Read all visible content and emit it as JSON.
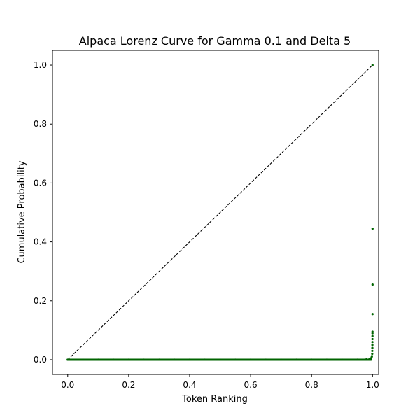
{
  "chart_data": {
    "type": "scatter",
    "title": "Alpaca Lorenz Curve for Gamma 0.1 and Delta 5",
    "xlabel": "Token Ranking",
    "ylabel": "Cumulative Probability",
    "xlim": [
      -0.05,
      1.02
    ],
    "ylim": [
      -0.05,
      1.05
    ],
    "xticks": [
      0.0,
      0.2,
      0.4,
      0.6,
      0.8,
      1.0
    ],
    "yticks": [
      0.0,
      0.2,
      0.4,
      0.6,
      0.8,
      1.0
    ],
    "grid": false,
    "legend": "none",
    "reference_line": {
      "style": "dashed",
      "color": "#000000",
      "x": [
        0.0,
        1.0
      ],
      "y": [
        0.0,
        1.0
      ]
    },
    "series": [
      {
        "color": "#006400",
        "points": [
          [
            0.0,
            0.0
          ],
          [
            0.05,
            0.0
          ],
          [
            0.1,
            0.0
          ],
          [
            0.15,
            0.0
          ],
          [
            0.2,
            0.0
          ],
          [
            0.25,
            0.0
          ],
          [
            0.3,
            0.0
          ],
          [
            0.35,
            0.0
          ],
          [
            0.4,
            0.0
          ],
          [
            0.45,
            0.0
          ],
          [
            0.5,
            0.0
          ],
          [
            0.55,
            0.0
          ],
          [
            0.6,
            0.0
          ],
          [
            0.65,
            0.0
          ],
          [
            0.7,
            0.0
          ],
          [
            0.75,
            0.0
          ],
          [
            0.8,
            0.0
          ],
          [
            0.85,
            0.0
          ],
          [
            0.9,
            0.0
          ],
          [
            0.95,
            0.0
          ],
          [
            0.98,
            0.001
          ],
          [
            0.99,
            0.002
          ],
          [
            0.995,
            0.004
          ],
          [
            0.997,
            0.008
          ],
          [
            0.998,
            0.012
          ],
          [
            0.999,
            0.02
          ],
          [
            0.9992,
            0.03
          ],
          [
            0.9994,
            0.04
          ],
          [
            0.9995,
            0.05
          ],
          [
            0.9996,
            0.06
          ],
          [
            0.9997,
            0.07
          ],
          [
            0.9998,
            0.08
          ],
          [
            0.9998,
            0.09
          ],
          [
            0.9999,
            0.095
          ],
          [
            0.9999,
            0.155
          ],
          [
            1.0,
            0.255
          ],
          [
            1.0,
            0.445
          ],
          [
            1.0,
            1.0
          ]
        ]
      }
    ]
  }
}
